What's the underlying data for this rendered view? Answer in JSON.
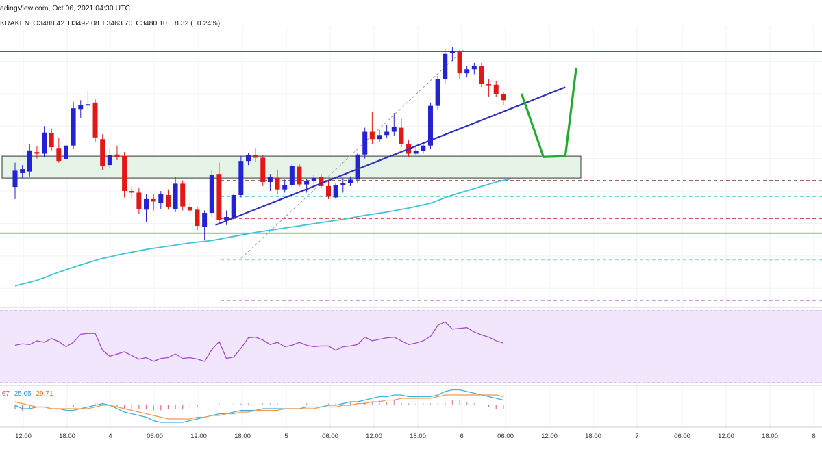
{
  "header": {
    "line1": "adingView.com, Oct 06, 2021 04:30 UTC",
    "exchange": "KRAKEN",
    "open": "O3488.42",
    "high": "H3492.08",
    "low": "L3463.70",
    "close": "C3480.10",
    "change": "−8.32 (−0.24%)"
  },
  "indicator": {
    "v1": ".67",
    "v2": "25.05",
    "v3": "29.71"
  },
  "colors": {
    "bull": "#2323d4",
    "bear": "#e01818",
    "ma": "#3cc4d8",
    "rsi": "#a24ad0",
    "rsi_bg": "#f1e6fb",
    "zone": "#e2f2e4",
    "trendline": "#2e2ebf",
    "arrows": "#22aa33"
  },
  "chart_data": [
    {
      "type": "candlestick",
      "title": "",
      "x_tick_labels": [
        "12:00",
        "18:00",
        "4",
        "06:00",
        "12:00",
        "18:00",
        "5",
        "06:00",
        "12:00",
        "18:00",
        "6",
        "06:00",
        "12:00",
        "18:00",
        "7",
        "06:00",
        "12:00",
        "18:00",
        "8"
      ],
      "ylim": [
        3180,
        3520
      ],
      "candles": [
        [
          3325,
          3355,
          3310,
          3345
        ],
        [
          3342,
          3352,
          3336,
          3347
        ],
        [
          3344,
          3378,
          3338,
          3370
        ],
        [
          3368,
          3375,
          3360,
          3366
        ],
        [
          3366,
          3400,
          3362,
          3392
        ],
        [
          3391,
          3397,
          3370,
          3374
        ],
        [
          3373,
          3385,
          3355,
          3357
        ],
        [
          3359,
          3382,
          3354,
          3376
        ],
        [
          3376,
          3430,
          3372,
          3422
        ],
        [
          3421,
          3432,
          3410,
          3426
        ],
        [
          3426,
          3444,
          3420,
          3427
        ],
        [
          3429,
          3433,
          3380,
          3386
        ],
        [
          3384,
          3390,
          3346,
          3351
        ],
        [
          3352,
          3372,
          3348,
          3364
        ],
        [
          3365,
          3376,
          3358,
          3362
        ],
        [
          3363,
          3368,
          3312,
          3320
        ],
        [
          3320,
          3325,
          3310,
          3318
        ],
        [
          3318,
          3324,
          3292,
          3298
        ],
        [
          3297,
          3316,
          3282,
          3310
        ],
        [
          3310,
          3316,
          3296,
          3307
        ],
        [
          3305,
          3320,
          3298,
          3316
        ],
        [
          3315,
          3322,
          3297,
          3300
        ],
        [
          3298,
          3337,
          3294,
          3329
        ],
        [
          3329,
          3333,
          3296,
          3301
        ],
        [
          3300,
          3306,
          3292,
          3296
        ],
        [
          3297,
          3301,
          3272,
          3277
        ],
        [
          3276,
          3296,
          3260,
          3293
        ],
        [
          3293,
          3346,
          3288,
          3340
        ],
        [
          3341,
          3355,
          3280,
          3284
        ],
        [
          3284,
          3296,
          3278,
          3288
        ],
        [
          3287,
          3317,
          3284,
          3315
        ],
        [
          3315,
          3363,
          3312,
          3357
        ],
        [
          3357,
          3367,
          3352,
          3364
        ],
        [
          3364,
          3373,
          3356,
          3361
        ],
        [
          3361,
          3364,
          3326,
          3331
        ],
        [
          3331,
          3341,
          3320,
          3337
        ],
        [
          3336,
          3346,
          3316,
          3322
        ],
        [
          3322,
          3334,
          3318,
          3327
        ],
        [
          3327,
          3353,
          3324,
          3351
        ],
        [
          3350,
          3353,
          3325,
          3328
        ],
        [
          3328,
          3335,
          3318,
          3332
        ],
        [
          3332,
          3340,
          3328,
          3336
        ],
        [
          3337,
          3341,
          3323,
          3326
        ],
        [
          3326,
          3332,
          3310,
          3313
        ],
        [
          3312,
          3330,
          3310,
          3327
        ],
        [
          3327,
          3336,
          3318,
          3330
        ],
        [
          3330,
          3338,
          3326,
          3334
        ],
        [
          3334,
          3367,
          3330,
          3365
        ],
        [
          3365,
          3398,
          3360,
          3393
        ],
        [
          3393,
          3418,
          3378,
          3384
        ],
        [
          3384,
          3395,
          3380,
          3389
        ],
        [
          3389,
          3402,
          3385,
          3393
        ],
        [
          3393,
          3416,
          3388,
          3399
        ],
        [
          3398,
          3409,
          3374,
          3378
        ],
        [
          3378,
          3383,
          3362,
          3366
        ],
        [
          3366,
          3376,
          3364,
          3369
        ],
        [
          3369,
          3379,
          3366,
          3376
        ],
        [
          3376,
          3429,
          3372,
          3425
        ],
        [
          3425,
          3462,
          3420,
          3458
        ],
        [
          3458,
          3495,
          3452,
          3489
        ],
        [
          3490,
          3498,
          3480,
          3493
        ],
        [
          3492,
          3494,
          3458,
          3465
        ],
        [
          3465,
          3474,
          3460,
          3470
        ],
        [
          3470,
          3478,
          3464,
          3474
        ],
        [
          3474,
          3478,
          3448,
          3452
        ],
        [
          3452,
          3458,
          3436,
          3451
        ],
        [
          3451,
          3456,
          3436,
          3439
        ],
        [
          3439,
          3442,
          3426,
          3432
        ]
      ],
      "moving_average": [
        [
          0,
          3203
        ],
        [
          3,
          3210
        ],
        [
          6,
          3220
        ],
        [
          9,
          3229
        ],
        [
          12,
          3237
        ],
        [
          15,
          3243
        ],
        [
          18,
          3248
        ],
        [
          21,
          3252
        ],
        [
          24,
          3256
        ],
        [
          27,
          3259
        ],
        [
          30,
          3264
        ],
        [
          33,
          3269
        ],
        [
          36,
          3273
        ],
        [
          39,
          3277
        ],
        [
          42,
          3281
        ],
        [
          45,
          3285
        ],
        [
          48,
          3290
        ],
        [
          51,
          3294
        ],
        [
          54,
          3299
        ],
        [
          57,
          3305
        ],
        [
          60,
          3315
        ],
        [
          63,
          3323
        ],
        [
          66,
          3331
        ],
        [
          68,
          3335
        ]
      ],
      "horizontal_lines": [
        {
          "y": 3492,
          "color": "#d03030",
          "style": "solid"
        },
        {
          "y": 3442,
          "color": "#d23c3c",
          "style": "dashed"
        },
        {
          "y": 3333,
          "color": "#8a5555",
          "style": "dashed"
        },
        {
          "y": 3313,
          "color": "#66cccc",
          "style": "dashed"
        },
        {
          "y": 3286,
          "color": "#d23c3c",
          "style": "dashed"
        },
        {
          "y": 3268,
          "color": "#35a843",
          "style": "solid"
        },
        {
          "y": 3235,
          "color": "#88ccdd",
          "style": "dashed"
        },
        {
          "y": 3185,
          "color": "#b060c0",
          "style": "dashed"
        }
      ],
      "support_zone": [
        3336,
        3363
      ],
      "trend_line": [
        [
          27.5,
          3278
        ],
        [
          75.5,
          3448
        ]
      ],
      "projection": [
        [
          69.5,
          3440
        ],
        [
          72.5,
          3362
        ],
        [
          75.5,
          3363
        ],
        [
          77,
          3472
        ]
      ],
      "fib_guide": [
        [
          31,
          3237
        ],
        [
          61.5,
          3494
        ]
      ]
    },
    {
      "type": "line",
      "title": "",
      "ylim": [
        0,
        100
      ],
      "values": [
        52,
        54,
        53,
        58,
        56,
        61,
        57,
        50,
        56,
        67,
        68,
        68,
        45,
        37,
        40,
        43,
        38,
        33,
        35,
        30,
        34,
        35,
        40,
        34,
        35,
        33,
        30,
        46,
        57,
        34,
        36,
        48,
        62,
        63,
        59,
        53,
        56,
        50,
        52,
        56,
        52,
        50,
        51,
        51,
        45,
        50,
        51,
        53,
        63,
        58,
        60,
        62,
        63,
        58,
        53,
        55,
        58,
        64,
        79,
        84,
        74,
        75,
        76,
        70,
        66,
        63,
        58,
        55
      ]
    },
    {
      "type": "line",
      "title": "",
      "ylim": [
        -12,
        10
      ],
      "series": [
        {
          "color": "#3cb0d8",
          "values": [
            0,
            -2,
            -2,
            -1,
            -1,
            -2,
            -2,
            -3,
            -3,
            -2,
            -1,
            0,
            1,
            0,
            -2,
            -4,
            -5,
            -6,
            -7,
            -9,
            -10,
            -10,
            -10,
            -10,
            -9,
            -8,
            -7,
            -6,
            -5,
            -5,
            -4,
            -3,
            -3,
            -3,
            -2,
            -2,
            -2,
            -2,
            -2,
            -2,
            -1,
            -1,
            -1,
            0,
            0,
            1,
            2,
            2,
            3,
            4,
            5,
            5,
            6,
            6,
            5,
            5,
            5,
            5,
            6,
            8,
            9,
            9,
            8,
            7,
            6,
            5,
            4,
            3
          ]
        },
        {
          "color": "#f2994a",
          "values": [
            2,
            1,
            0,
            -1,
            -1,
            -2,
            -2,
            -2,
            -2,
            -2,
            -2,
            -1,
            0,
            0,
            -1,
            -2,
            -3,
            -4,
            -5,
            -6,
            -7,
            -8,
            -8,
            -8,
            -8,
            -7,
            -7,
            -6,
            -6,
            -5,
            -5,
            -4,
            -4,
            -3,
            -3,
            -3,
            -3,
            -2,
            -2,
            -2,
            -2,
            -2,
            -1,
            -1,
            -1,
            0,
            0,
            1,
            1,
            2,
            2,
            3,
            3,
            4,
            4,
            4,
            4,
            4,
            5,
            6,
            6,
            6,
            6,
            6,
            6,
            6,
            6,
            5
          ]
        }
      ]
    }
  ]
}
